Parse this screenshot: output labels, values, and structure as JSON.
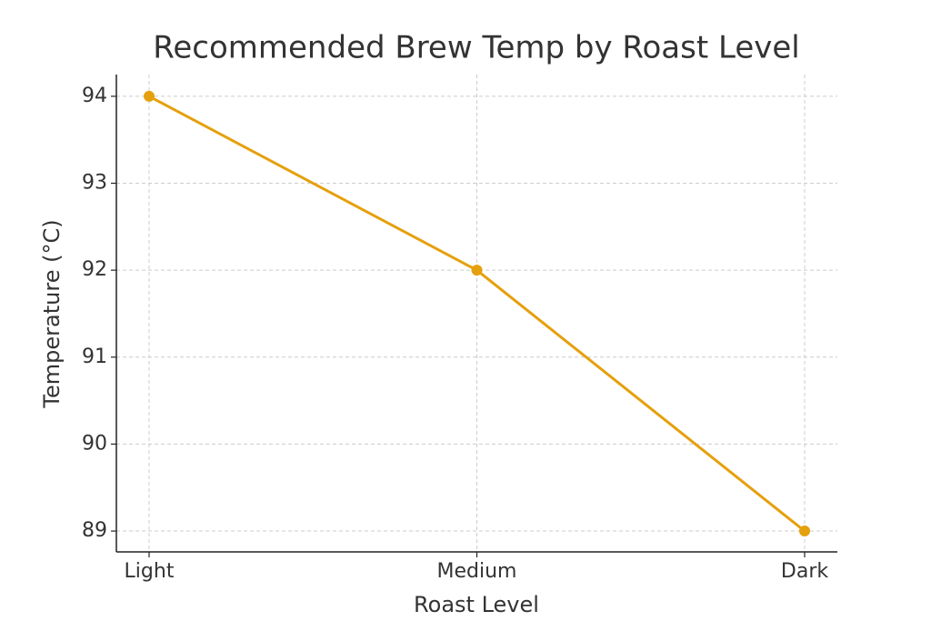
{
  "chart_data": {
    "type": "line",
    "title": "Recommended Brew Temp by Roast Level",
    "x_label": "Roast Level",
    "y_label": "Temperature (°C)",
    "categories": [
      "Light",
      "Medium",
      "Dark"
    ],
    "series": [
      {
        "name": "Temperature",
        "color": "#e5a00d",
        "values": [
          94,
          92,
          89
        ]
      }
    ],
    "ylim": [
      88.76,
      94.25
    ],
    "yticks": [
      89,
      90,
      91,
      92,
      93,
      94
    ],
    "grid": true
  }
}
